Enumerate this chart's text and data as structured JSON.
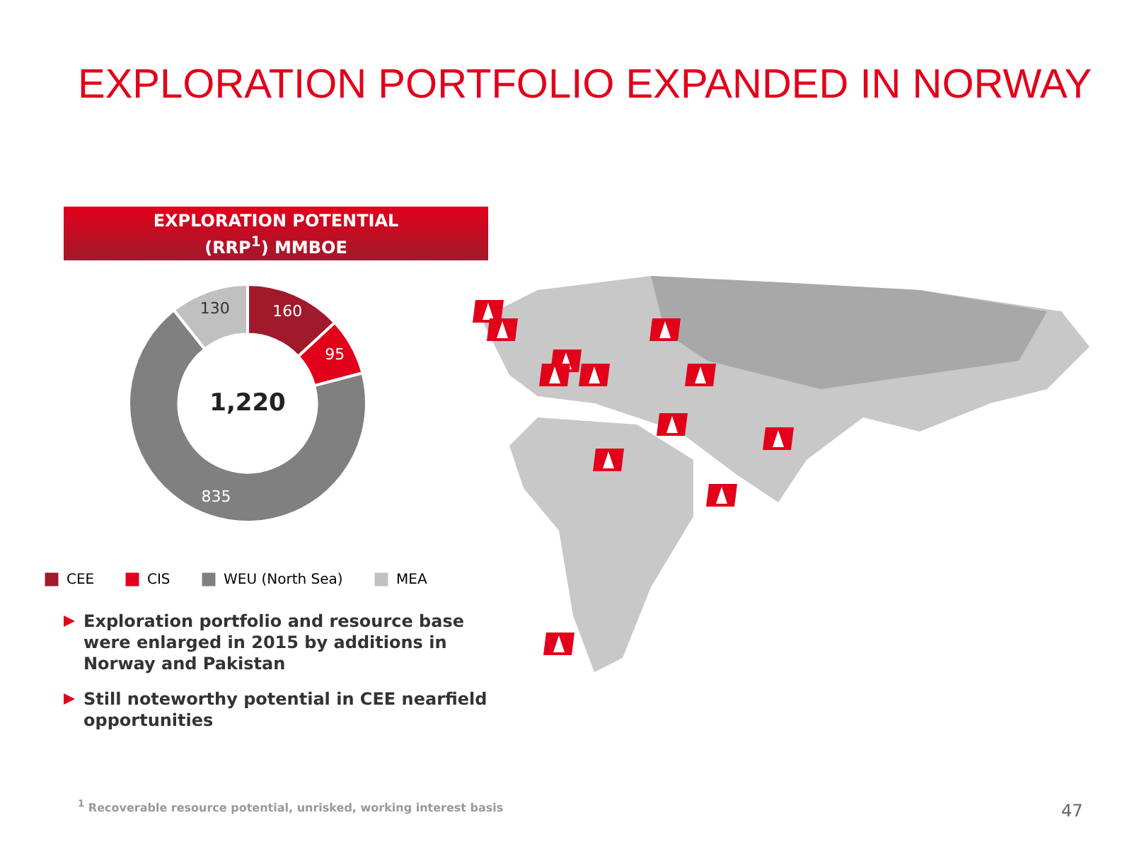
{
  "chart_data": {
    "type": "donut",
    "title": "EXPLORATION PORTFOLIO EXPANDED IN NORWAY",
    "subtitle": "EXPLORATION POTENTIAL (RRP$^{1}$) MMBOE",
    "categories": [
      "CEE",
      "CIS",
      "WEU (North Sea)",
      "MEA"
    ],
    "values": [
      160,
      95,
      835,
      130
    ],
    "colors": [
      "#a01a2b",
      "#e2001a",
      "#808080",
      "#c0c0c0"
    ],
    "data_labels": true,
    "legend": "bottom",
    "annotations": [
      "1,220",
      "Exploration portfolio and resource base were enlarged in 2015 by additions in Norway and Pakistan",
      "Still noteworthy potential in CEE nearfield opportunities",
      "$^{1}$ Recoverable resource potential, unrisked, working interest basis",
      "47"
    ]
  }
}
